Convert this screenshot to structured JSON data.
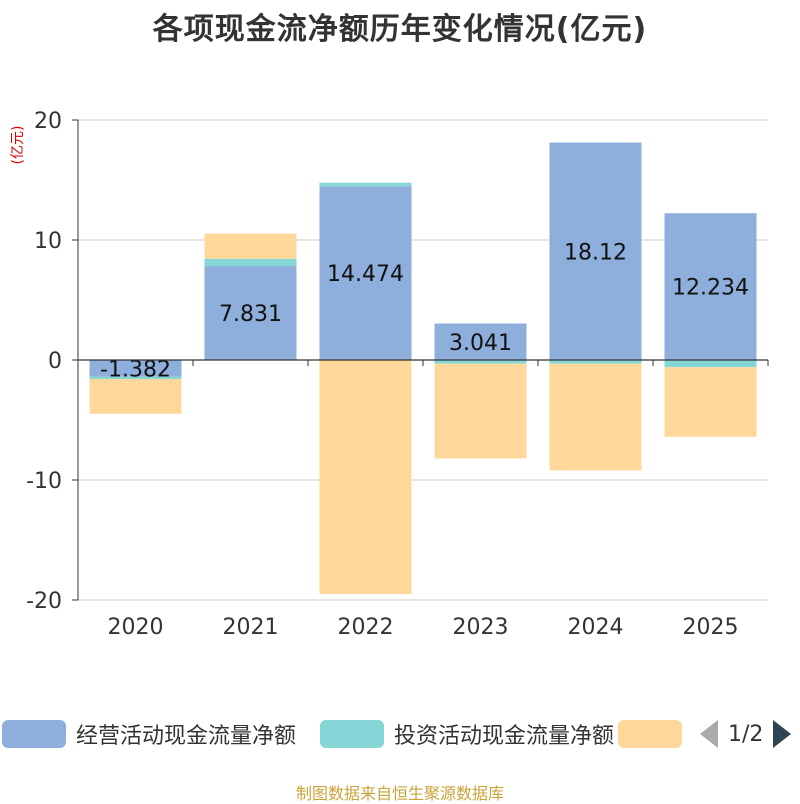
{
  "chart_data": {
    "type": "bar",
    "stacked": true,
    "title": "各项现金流净额历年变化情况(亿元)",
    "ylabel": "(亿元)",
    "xlabel": "",
    "ylim": [
      -20,
      20
    ],
    "yticks": [
      20,
      10,
      0,
      -10,
      -20
    ],
    "categories": [
      "2020",
      "2021",
      "2022",
      "2023",
      "2024",
      "2025"
    ],
    "series": [
      {
        "name": "经营活动现金流量净额",
        "color": "#8eaedb",
        "values": [
          -1.382,
          7.831,
          14.474,
          3.041,
          18.12,
          12.234
        ],
        "labels": [
          "-1.382",
          "7.831",
          "14.474",
          "3.041",
          "18.12",
          "12.234"
        ]
      },
      {
        "name": "投资活动现金流量净额",
        "color": "#85d6d7",
        "values": [
          -0.2,
          0.6,
          0.3,
          -0.3,
          -0.3,
          -0.6
        ]
      },
      {
        "name": "",
        "color": "#fdd89a",
        "values": [
          -2.9,
          2.1,
          -19.5,
          -7.9,
          -8.9,
          -5.8
        ]
      }
    ],
    "grid": true
  },
  "legend": {
    "page_text": "1/2"
  },
  "source_note": "制图数据来自恒生聚源数据库"
}
